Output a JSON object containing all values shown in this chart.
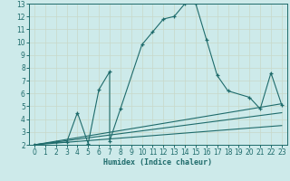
{
  "xlabel": "Humidex (Indice chaleur)",
  "xlim": [
    -0.5,
    23.5
  ],
  "ylim": [
    2,
    13
  ],
  "xticks": [
    0,
    1,
    2,
    3,
    4,
    5,
    6,
    7,
    8,
    9,
    10,
    11,
    12,
    13,
    14,
    15,
    16,
    17,
    18,
    19,
    20,
    21,
    22,
    23
  ],
  "yticks": [
    2,
    3,
    4,
    5,
    6,
    7,
    8,
    9,
    10,
    11,
    12,
    13
  ],
  "bg_color": "#cdeaea",
  "line_color": "#1e6b6b",
  "grid_color": "#b8d8d8",
  "main_line": {
    "x": [
      0,
      2,
      3,
      4,
      5,
      6,
      7,
      7,
      8,
      10,
      11,
      12,
      13,
      14,
      15,
      16,
      17,
      18,
      20,
      21,
      22,
      23
    ],
    "y": [
      2,
      2.2,
      2.2,
      4.5,
      2.1,
      6.3,
      7.7,
      2.3,
      4.8,
      9.8,
      10.8,
      11.8,
      12.0,
      13.0,
      13.0,
      10.2,
      7.4,
      6.2,
      5.7,
      4.8,
      7.6,
      5.1
    ]
  },
  "trend_lines": [
    {
      "x": [
        0,
        23
      ],
      "y": [
        2.0,
        3.5
      ]
    },
    {
      "x": [
        0,
        23
      ],
      "y": [
        2.0,
        4.5
      ]
    },
    {
      "x": [
        0,
        23
      ],
      "y": [
        2.0,
        5.2
      ]
    }
  ]
}
